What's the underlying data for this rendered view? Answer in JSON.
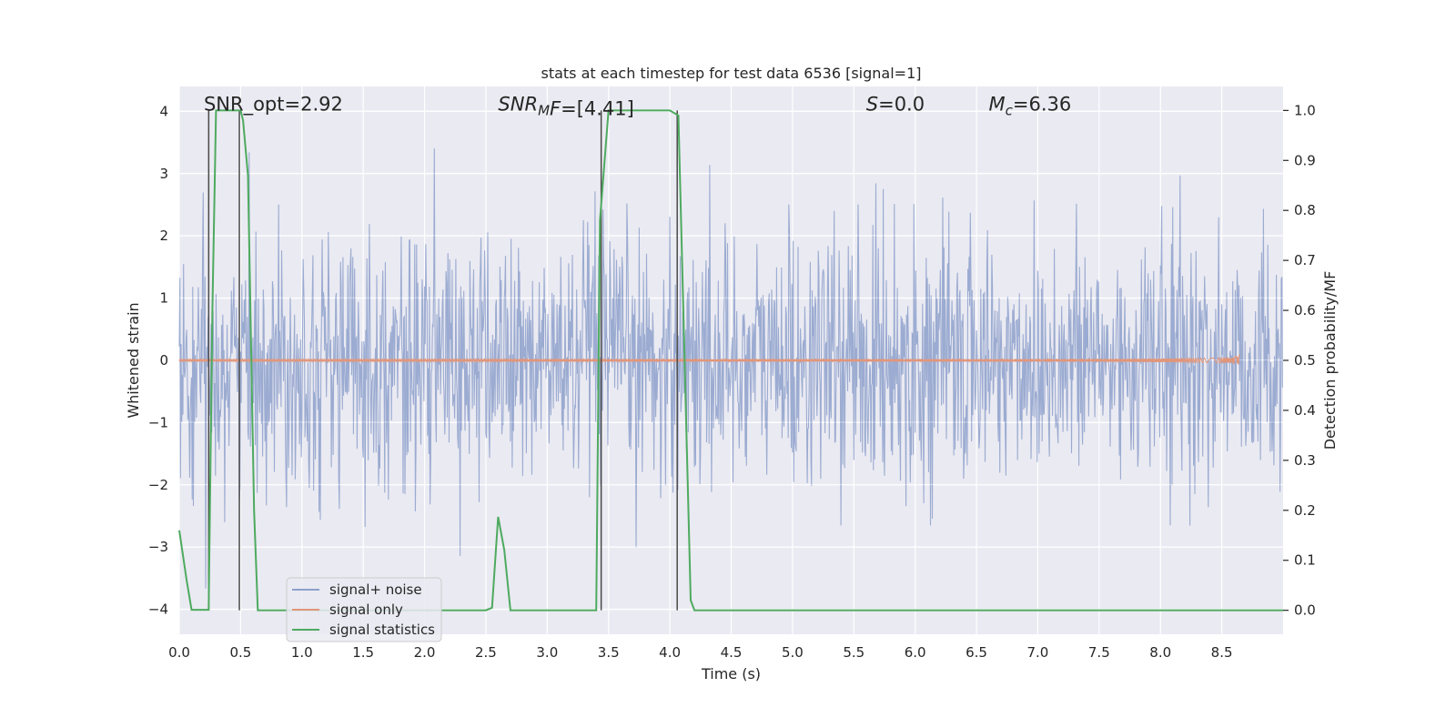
{
  "chart_data": {
    "type": "line",
    "title": "stats at each timestep for test data 6536 [signal=1]",
    "xlabel": "Time (s)",
    "ylabel": "Whitened strain",
    "y2label": "Detection probability/MF",
    "xlim": [
      0.0,
      9.0
    ],
    "ylim": [
      -4.4,
      4.4
    ],
    "y2lim": [
      -0.048,
      1.048
    ],
    "x_ticks": [
      "0.0",
      "0.5",
      "1.0",
      "1.5",
      "2.0",
      "2.5",
      "3.0",
      "3.5",
      "4.0",
      "4.5",
      "5.0",
      "5.5",
      "6.0",
      "6.5",
      "7.0",
      "7.5",
      "8.0",
      "8.5"
    ],
    "y_ticks": [
      "4",
      "3",
      "2",
      "1",
      "0",
      "−1",
      "−2",
      "−3",
      "−4"
    ],
    "y2_ticks": [
      "1.0",
      "0.9",
      "0.8",
      "0.7",
      "0.6",
      "0.5",
      "0.4",
      "0.3",
      "0.2",
      "0.1",
      "0.0"
    ],
    "grid": true,
    "legend_position": "lower-left",
    "annotations": [
      {
        "text": "SNR_opt=2.92",
        "x": 0.2
      },
      {
        "text": "SNR_MF=[4.41]",
        "prefix": "SNR",
        "sub": "M",
        "suffix": "F=[4.41]",
        "x": 2.6
      },
      {
        "text": "S=0.0",
        "prefix": "S",
        "suffix": "=0.0",
        "x": 5.6
      },
      {
        "text": "M_c=6.36",
        "prefix": "M",
        "sub": "c",
        "suffix": "=6.36",
        "x": 6.6
      }
    ],
    "series": [
      {
        "name": "signal+ noise",
        "color": "#8da0cb",
        "axis": "left",
        "sample_rate_hz": 200,
        "envelope_std": 1.0
      },
      {
        "name": "signal only",
        "color": "#e1967a",
        "axis": "left",
        "chirp_end_time": 8.65,
        "max_amplitude": 0.4
      },
      {
        "name": "signal statistics",
        "color": "#4eaa5f",
        "axis": "right",
        "x": [
          0.0,
          0.06,
          0.1,
          0.24,
          0.27,
          0.3,
          0.5,
          0.52,
          0.56,
          0.61,
          0.64,
          2.5,
          2.55,
          2.6,
          2.65,
          2.7,
          2.75,
          2.8,
          3.4,
          3.43,
          3.5,
          4.0,
          4.07,
          4.17,
          4.2,
          9.0
        ],
        "y": [
          0.16,
          0.06,
          0.001,
          0.001,
          0.6,
          1.0,
          1.0,
          0.98,
          0.87,
          0.2,
          0.0,
          0.0,
          0.005,
          0.187,
          0.12,
          0.0,
          0.0,
          0.0,
          0.0,
          0.78,
          1.0,
          1.0,
          0.99,
          0.02,
          0.0,
          0.0
        ]
      }
    ],
    "vlines": [
      0.24,
      0.49,
      3.44,
      4.06
    ]
  }
}
